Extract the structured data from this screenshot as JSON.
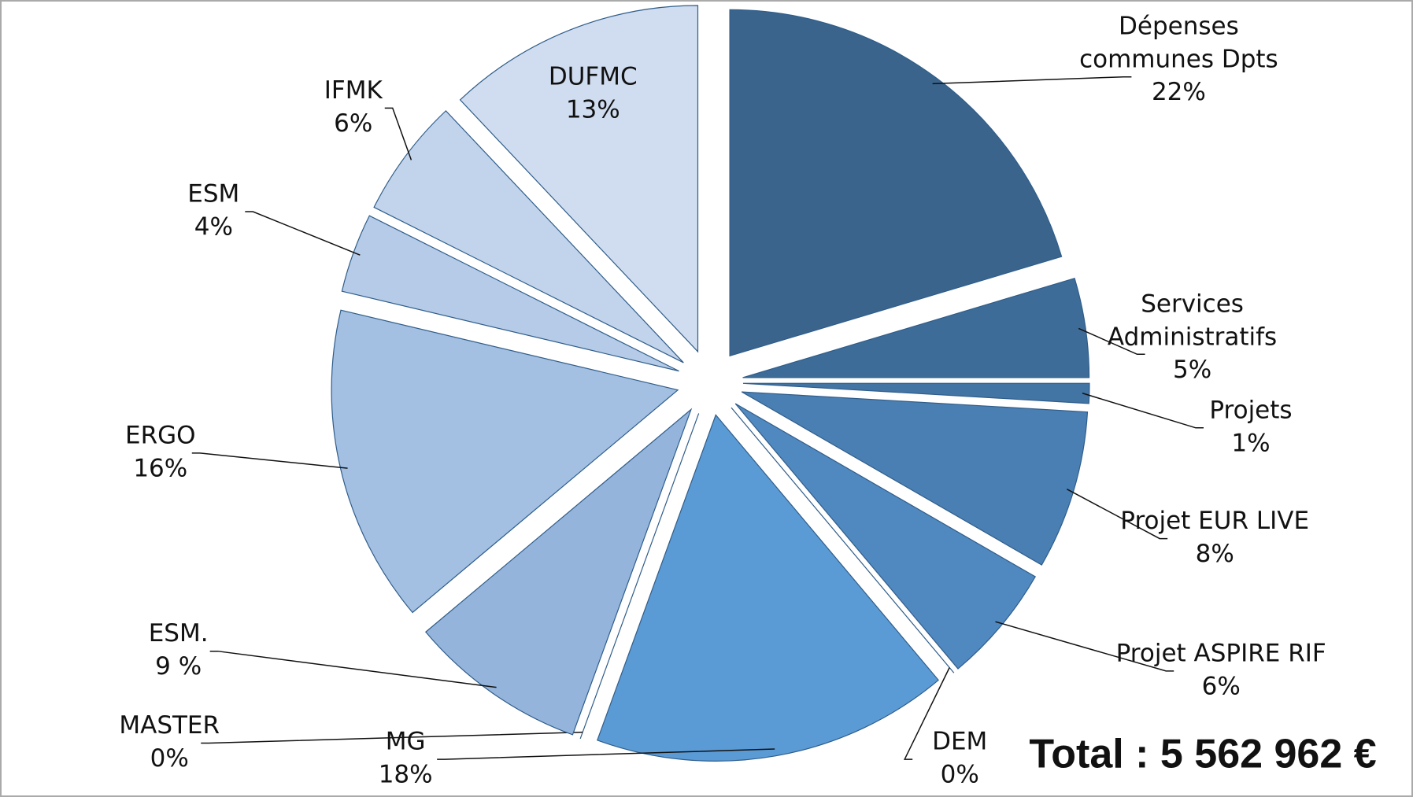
{
  "chart_data": {
    "type": "pie",
    "annotation": "Total : 5 562 962 €",
    "categories": [
      "Dépenses communes Dpts",
      "Services Administratifs",
      "Projets",
      "Projet EUR LIVE",
      "Projet ASPIRE RIF",
      "DEM",
      "MG",
      "MASTER",
      "ESM.",
      "ERGO",
      "ESM",
      "IFMK",
      "DUFMC"
    ],
    "values": [
      22,
      5,
      1,
      8,
      6,
      0,
      18,
      0,
      9,
      16,
      4,
      6,
      13
    ],
    "value_labels": [
      "22%",
      "5%",
      "1%",
      "8%",
      "6%",
      "0%",
      "18%",
      "0%",
      "9 %",
      "16%",
      "4%",
      "6%",
      "13%"
    ],
    "colors": [
      "#3a648c",
      "#3e6c98",
      "#4274a4",
      "#4a7fb4",
      "#5088c0",
      "#5591cc",
      "#5b9bd5",
      "#8fb1db",
      "#94b4dc",
      "#a3bfe2",
      "#b5cbe7",
      "#c2d4ec",
      "#d0ddf0"
    ]
  }
}
